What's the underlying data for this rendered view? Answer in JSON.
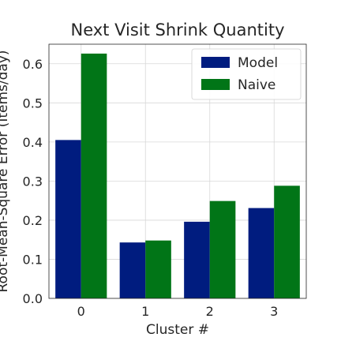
{
  "chart_data": {
    "type": "bar",
    "title": "Next Visit Shrink Quantity",
    "xlabel": "Cluster #",
    "ylabel": "Root-Mean-Square Error (Items/day)",
    "categories": [
      "0",
      "1",
      "2",
      "3"
    ],
    "series": [
      {
        "name": "Model",
        "color": "#001c7f",
        "values": [
          0.405,
          0.143,
          0.196,
          0.231
        ]
      },
      {
        "name": "Naive",
        "color": "#017517",
        "values": [
          0.626,
          0.148,
          0.249,
          0.288
        ]
      }
    ],
    "ylim": [
      0,
      0.65
    ],
    "yticks": [
      "0.0",
      "0.1",
      "0.2",
      "0.3",
      "0.4",
      "0.5",
      "0.6"
    ],
    "grid": true,
    "legend_position": "top-right"
  }
}
